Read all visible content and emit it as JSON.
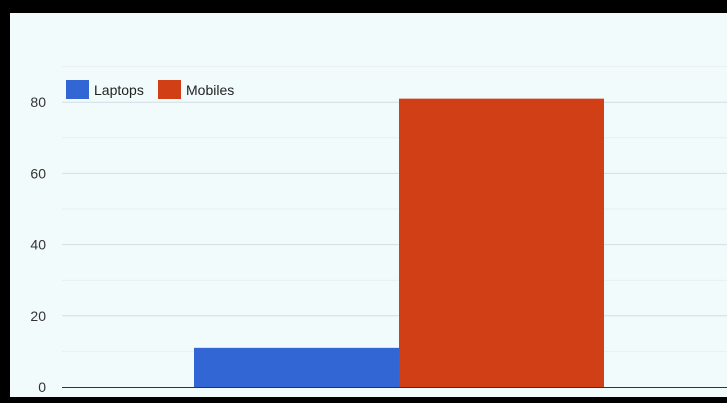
{
  "colors": {
    "laptops": "#3266d5",
    "mobiles": "#d13f16",
    "grid_major": "#d4dde6",
    "grid_minor": "#e8eef2",
    "axis": "#333333",
    "background": "#f2fbfb"
  },
  "chart_data": {
    "type": "bar",
    "categories": [
      ""
    ],
    "series": [
      {
        "name": "Laptops",
        "values": [
          11
        ]
      },
      {
        "name": "Mobiles",
        "values": [
          81
        ]
      }
    ],
    "title": "",
    "xlabel": "",
    "ylabel": "",
    "ylim": [
      0,
      90
    ],
    "yticks": [
      0,
      20,
      40,
      60,
      80
    ],
    "grid": true,
    "legend": "top-left"
  }
}
